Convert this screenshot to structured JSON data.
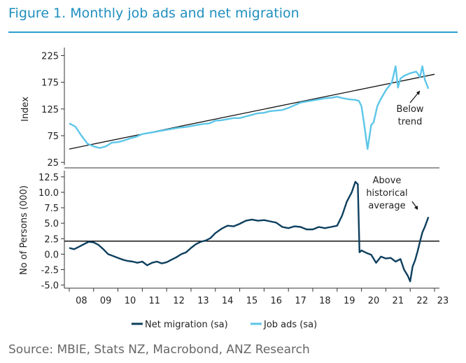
{
  "figure": {
    "title": "Figure 1.   Monthly job ads and net migration",
    "source": "Source: MBIE, Stats NZ, Macrobond, ANZ Research"
  },
  "colors": {
    "accent": "#2a9fd0",
    "net_migration": "#0d3f5e",
    "job_ads": "#5cc6e8",
    "reference": "#111111"
  },
  "chart_data": [
    {
      "type": "line",
      "panel": "top",
      "ylabel": "Index",
      "ylim": [
        20,
        240
      ],
      "yticks": [
        25,
        75,
        125,
        175,
        225
      ],
      "series": [
        {
          "name": "Job ads (sa)",
          "x": [
            2008.0,
            2008.25,
            2008.5,
            2008.75,
            2009.0,
            2009.25,
            2009.5,
            2009.75,
            2010.0,
            2010.25,
            2010.5,
            2010.75,
            2011.0,
            2011.25,
            2011.5,
            2011.75,
            2012.0,
            2012.25,
            2012.5,
            2012.75,
            2013.0,
            2013.25,
            2013.5,
            2013.75,
            2014.0,
            2014.25,
            2014.5,
            2014.75,
            2015.0,
            2015.25,
            2015.5,
            2015.75,
            2016.0,
            2016.25,
            2016.5,
            2016.75,
            2017.0,
            2017.25,
            2017.5,
            2017.75,
            2018.0,
            2018.25,
            2018.5,
            2018.75,
            2019.0,
            2019.25,
            2019.5,
            2019.75,
            2019.9,
            2020.0,
            2020.1,
            2020.25,
            2020.4,
            2020.5,
            2020.65,
            2020.75,
            2021.0,
            2021.25,
            2021.4,
            2021.5,
            2021.6,
            2021.75,
            2022.0,
            2022.25,
            2022.4,
            2022.5,
            2022.6,
            2022.75
          ],
          "values": [
            98,
            92,
            75,
            60,
            55,
            52,
            55,
            62,
            63,
            66,
            70,
            73,
            78,
            80,
            82,
            84,
            86,
            88,
            90,
            91,
            93,
            95,
            97,
            98,
            103,
            104,
            106,
            108,
            108,
            111,
            114,
            117,
            118,
            121,
            122,
            123,
            127,
            132,
            137,
            139,
            141,
            143,
            145,
            146,
            148,
            145,
            143,
            142,
            140,
            130,
            100,
            50,
            95,
            100,
            130,
            140,
            160,
            175,
            205,
            165,
            182,
            187,
            192,
            195,
            185,
            205,
            180,
            163
          ]
        }
      ],
      "trend": {
        "name": "Trend",
        "x": [
          2008.0,
          2023.0
        ],
        "values": [
          50,
          190
        ]
      },
      "annotation": {
        "text_line1": "Below",
        "text_line2": "trend"
      }
    },
    {
      "type": "line",
      "panel": "bottom",
      "ylabel": "No of Persons (000)",
      "ylim": [
        -5.5,
        13.5
      ],
      "yticks": [
        -5.0,
        -2.5,
        0.0,
        2.5,
        5.0,
        7.5,
        10.0,
        12.5
      ],
      "ytick_labels": [
        "-5.0",
        "-2.5",
        "0.0",
        "2.5",
        "5.0",
        "7.5",
        "10.0",
        "12.5"
      ],
      "series": [
        {
          "name": "Net migration (sa)",
          "x": [
            2008.0,
            2008.2,
            2008.4,
            2008.6,
            2008.8,
            2009.0,
            2009.2,
            2009.4,
            2009.6,
            2009.8,
            2010.0,
            2010.2,
            2010.4,
            2010.6,
            2010.8,
            2011.0,
            2011.2,
            2011.4,
            2011.6,
            2011.8,
            2012.0,
            2012.2,
            2012.4,
            2012.6,
            2012.8,
            2013.0,
            2013.2,
            2013.4,
            2013.6,
            2013.8,
            2014.0,
            2014.25,
            2014.5,
            2014.75,
            2015.0,
            2015.25,
            2015.5,
            2015.75,
            2016.0,
            2016.25,
            2016.5,
            2016.75,
            2017.0,
            2017.25,
            2017.5,
            2017.75,
            2018.0,
            2018.25,
            2018.5,
            2018.75,
            2019.0,
            2019.2,
            2019.4,
            2019.6,
            2019.75,
            2019.85,
            2019.92,
            2020.0,
            2020.2,
            2020.4,
            2020.6,
            2020.8,
            2021.0,
            2021.2,
            2021.4,
            2021.6,
            2021.75,
            2021.9,
            2022.0,
            2022.1,
            2022.2,
            2022.3,
            2022.4,
            2022.5,
            2022.6,
            2022.75
          ],
          "values": [
            1.0,
            0.8,
            1.2,
            1.6,
            2.0,
            1.9,
            1.5,
            0.8,
            0.0,
            -0.3,
            -0.6,
            -0.9,
            -1.1,
            -1.2,
            -1.4,
            -1.2,
            -1.8,
            -1.4,
            -1.2,
            -1.5,
            -1.3,
            -0.9,
            -0.5,
            0.0,
            0.3,
            1.0,
            1.6,
            2.0,
            2.2,
            2.6,
            3.4,
            4.1,
            4.6,
            4.5,
            4.9,
            5.4,
            5.6,
            5.4,
            5.5,
            5.3,
            5.1,
            4.4,
            4.2,
            4.5,
            4.4,
            4.0,
            4.0,
            4.4,
            4.2,
            4.4,
            4.6,
            6.2,
            8.5,
            10.0,
            11.7,
            11.3,
            0.3,
            0.6,
            0.2,
            -0.1,
            -1.4,
            -0.4,
            -0.7,
            -0.6,
            -1.2,
            -0.8,
            -2.5,
            -3.5,
            -4.4,
            -2.0,
            -1.0,
            0.4,
            2.0,
            3.5,
            4.4,
            6.0
          ]
        }
      ],
      "reference": {
        "name": "Historical average",
        "value": 2.1
      },
      "annotation": {
        "text_line1": "Above",
        "text_line2": "historical",
        "text_line3": "average"
      }
    }
  ],
  "x_axis": {
    "ticks": [
      2008,
      2009,
      2010,
      2011,
      2012,
      2013,
      2014,
      2015,
      2016,
      2017,
      2018,
      2019,
      2020,
      2021,
      2022,
      2023
    ],
    "labels": [
      "08",
      "09",
      "10",
      "11",
      "12",
      "13",
      "14",
      "15",
      "16",
      "17",
      "18",
      "19",
      "20",
      "21",
      "22",
      "23"
    ],
    "xlim": [
      2007.8,
      2023.2
    ]
  },
  "legend": {
    "item1": "Net migration (sa)",
    "item2": "Job ads (sa)"
  }
}
